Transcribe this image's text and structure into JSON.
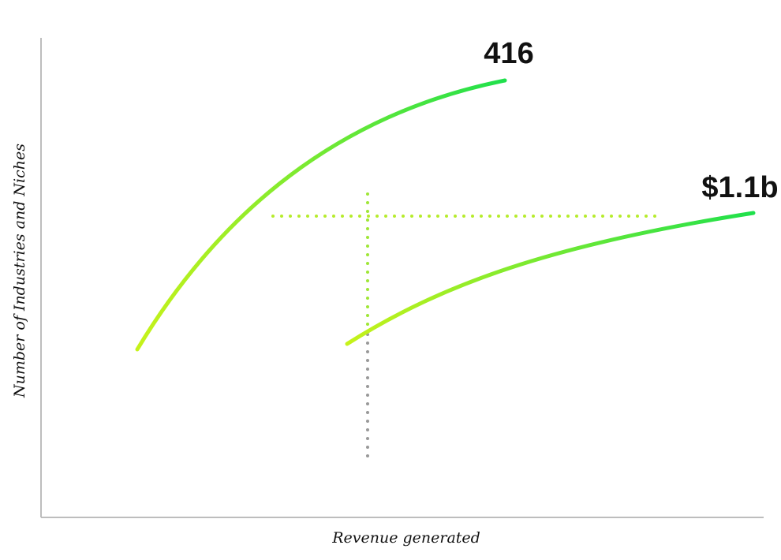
{
  "chart_data": {
    "type": "line",
    "title": "",
    "xlabel": "Revenue generated",
    "ylabel": "Number of Industries and Niches",
    "grid": false,
    "legend": "none",
    "axes": {
      "x_ticks": false,
      "y_ticks": false
    },
    "series": [
      {
        "label": "416",
        "color_start": "#c6f21a",
        "color_end": "#1fe04c"
      },
      {
        "label": "$1.1b",
        "color_start": "#c6f21a",
        "color_end": "#1fe04c"
      }
    ],
    "reference_lines": {
      "horizontal_color": "#b6ec2c",
      "vertical_upper_color": "#9fe636",
      "vertical_lower_color": "#999999"
    }
  }
}
